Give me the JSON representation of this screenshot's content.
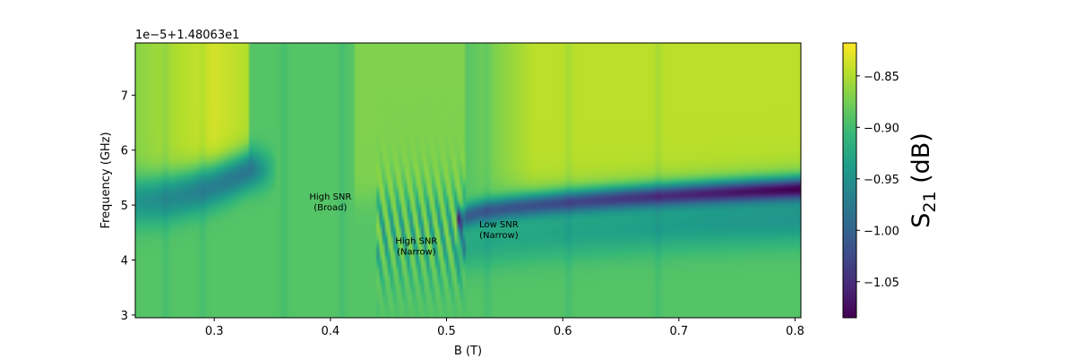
{
  "chart_data": {
    "type": "heatmap",
    "xlabel": "B (T)",
    "ylabel": "Frequency (GHz)",
    "offset_text": "1e−5+1.48063e1",
    "xlim": [
      0.232,
      0.805
    ],
    "ylim": [
      2.95,
      7.95
    ],
    "xticks": [
      0.3,
      0.4,
      0.5,
      0.6,
      0.7,
      0.8
    ],
    "xtick_labels": [
      "0.3",
      "0.4",
      "0.5",
      "0.6",
      "0.7",
      "0.8"
    ],
    "yticks": [
      3,
      4,
      5,
      6,
      7
    ],
    "ytick_labels": [
      "3",
      "4",
      "5",
      "6",
      "7"
    ],
    "colorbar": {
      "label_main": "S",
      "label_sub": "21",
      "label_unit": " (dB)",
      "colormap": "viridis",
      "range": [
        -1.085,
        -0.818
      ],
      "ticks": [
        -0.85,
        -0.9,
        -0.95,
        -1.0,
        -1.05
      ],
      "tick_labels": [
        "−0.85",
        "−0.90",
        "−0.95",
        "−1.00",
        "−1.05"
      ]
    },
    "annotations": [
      {
        "lines": [
          "High SNR",
          "(Broad)"
        ],
        "x": 0.4,
        "y": 5.0
      },
      {
        "lines": [
          "High SNR",
          "(Narrow)"
        ],
        "x": 0.474,
        "y": 4.2
      },
      {
        "lines": [
          "Low SNR",
          "(Narrow)"
        ],
        "x": 0.545,
        "y": 4.5
      }
    ],
    "resonance": {
      "baseline_dB": -0.89,
      "upper_band_dB": -0.835,
      "min_dB": -1.08,
      "segment1": {
        "x": [
          0.232,
          0.33
        ],
        "center": [
          5.1,
          5.65
        ],
        "depth_dB": [
          -0.95,
          -0.985
        ]
      },
      "fringe_region": {
        "x": [
          0.44,
          0.515
        ],
        "count": 9
      },
      "segment2": {
        "x": [
          0.515,
          0.805
        ],
        "center": [
          4.75,
          5.3
        ],
        "depth_dB": [
          -1.0,
          -1.08
        ]
      }
    }
  }
}
